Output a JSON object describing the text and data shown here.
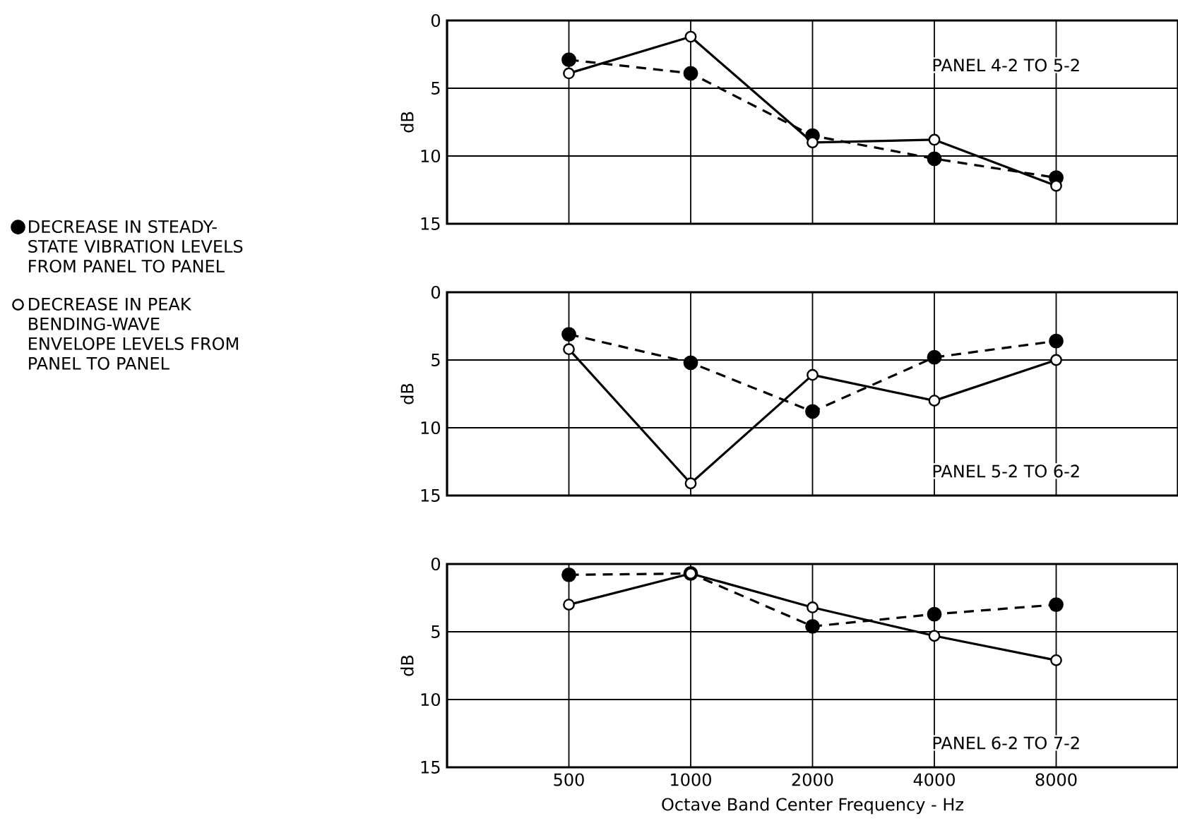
{
  "chart_data": [
    {
      "type": "line",
      "title": "PANEL 4-2 TO 5-2",
      "ylabel": "dB",
      "categories": [
        "500",
        "1000",
        "2000",
        "4000",
        "8000"
      ],
      "ylim": [
        15,
        0
      ],
      "yticks": [
        0,
        5,
        10,
        15
      ],
      "grid": true,
      "tick_labels": "y",
      "marker": "circle",
      "legend": false,
      "series": [
        {
          "color": "#000000",
          "line_style": "dashed",
          "values": [
            2.9,
            3.9,
            8.5,
            10.2,
            11.6
          ]
        },
        {
          "color": "#000000",
          "line_style": "solid",
          "values": [
            3.9,
            1.2,
            9.0,
            8.8,
            12.2
          ]
        }
      ]
    },
    {
      "type": "line",
      "title": "PANEL 5-2 TO 6-2",
      "ylabel": "dB",
      "categories": [
        "500",
        "1000",
        "2000",
        "4000",
        "8000"
      ],
      "ylim": [
        15,
        0
      ],
      "yticks": [
        0,
        5,
        10,
        15
      ],
      "grid": true,
      "tick_labels": "y",
      "marker": "circle",
      "legend": "left",
      "series": [
        {
          "name": "DECREASE IN STEADY-STATE VIBRATION LEVELS FROM PANEL TO PANEL",
          "color": "#000000",
          "line_style": "dashed",
          "values": [
            3.1,
            5.2,
            8.8,
            4.8,
            3.6
          ]
        },
        {
          "name": "DECREASE IN PEAK BENDING-WAVE ENVELOPE LEVELS FROM PANEL TO PANEL",
          "color": "#000000",
          "line_style": "solid",
          "values": [
            4.2,
            14.1,
            6.1,
            8.0,
            5.0
          ]
        }
      ]
    },
    {
      "type": "line",
      "title": "PANEL 6-2 TO 7-2",
      "xlabel": "Octave Band Center Frequency - Hz",
      "ylabel": "dB",
      "categories": [
        "500",
        "1000",
        "2000",
        "4000",
        "8000"
      ],
      "ylim": [
        15,
        0
      ],
      "yticks": [
        0,
        5,
        10,
        15
      ],
      "grid": true,
      "marker": "circle",
      "legend": false,
      "series": [
        {
          "color": "#000000",
          "line_style": "dashed",
          "values": [
            0.8,
            0.7,
            4.6,
            3.7,
            3.0
          ]
        },
        {
          "color": "#000000",
          "line_style": "solid",
          "values": [
            3.0,
            0.7,
            3.2,
            5.3,
            7.1
          ]
        }
      ]
    }
  ]
}
